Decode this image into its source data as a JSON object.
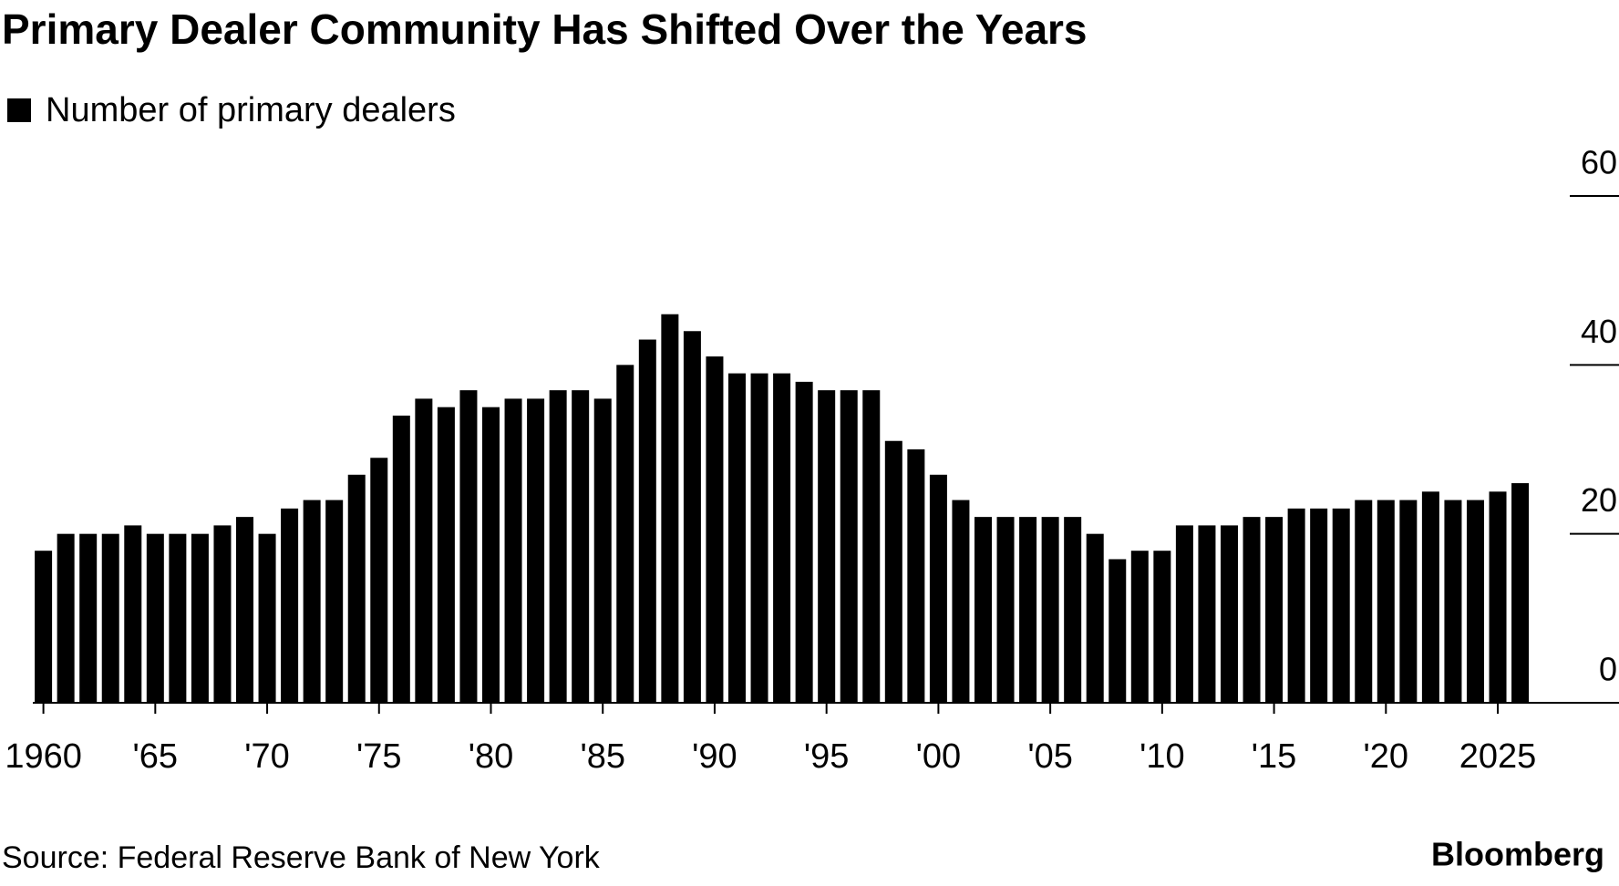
{
  "chart_data": {
    "type": "bar",
    "title": "Primary Dealer Community Has Shifted Over the Years",
    "source": "Source: Federal Reserve Bank of New York",
    "brand": "Bloomberg",
    "series": [
      {
        "name": "Number of primary dealers",
        "color": "#000000",
        "values": [
          18,
          20,
          20,
          20,
          21,
          20,
          20,
          20,
          21,
          22,
          20,
          23,
          24,
          24,
          27,
          29,
          34,
          36,
          35,
          37,
          35,
          36,
          36,
          37,
          37,
          36,
          40,
          43,
          46,
          44,
          41,
          39,
          39,
          39,
          38,
          37,
          37,
          37,
          31,
          30,
          27,
          24,
          22,
          22,
          22,
          22,
          22,
          20,
          17,
          18,
          18,
          21,
          21,
          21,
          22,
          22,
          23,
          23,
          23,
          24,
          24,
          24,
          25,
          24,
          24,
          25,
          26
        ]
      }
    ],
    "x": [
      1960,
      1961,
      1962,
      1963,
      1964,
      1965,
      1966,
      1967,
      1968,
      1969,
      1970,
      1971,
      1972,
      1973,
      1974,
      1975,
      1976,
      1977,
      1978,
      1979,
      1980,
      1981,
      1982,
      1983,
      1984,
      1985,
      1986,
      1987,
      1988,
      1989,
      1990,
      1991,
      1992,
      1993,
      1994,
      1995,
      1996,
      1997,
      1998,
      1999,
      2000,
      2001,
      2002,
      2003,
      2004,
      2005,
      2006,
      2007,
      2008,
      2009,
      2010,
      2011,
      2012,
      2013,
      2014,
      2015,
      2016,
      2017,
      2018,
      2019,
      2020,
      2021,
      2022,
      2023,
      2024,
      2025,
      2026
    ],
    "xticks": [
      1960,
      {
        "value": 1965,
        "label": "'65"
      },
      {
        "value": 1970,
        "label": "'70"
      },
      {
        "value": 1975,
        "label": "'75"
      },
      {
        "value": 1980,
        "label": "'80"
      },
      {
        "value": 1985,
        "label": "'85"
      },
      {
        "value": 1990,
        "label": "'90"
      },
      {
        "value": 1995,
        "label": "'95"
      },
      {
        "value": 2000,
        "label": "'00"
      },
      {
        "value": 2005,
        "label": "'05"
      },
      {
        "value": 2010,
        "label": "'10"
      },
      {
        "value": 2015,
        "label": "'15"
      },
      {
        "value": 2020,
        "label": "'20"
      },
      2025
    ],
    "ylim": [
      0,
      60
    ],
    "yticks": [
      0,
      20,
      40,
      60
    ],
    "grid": false
  }
}
